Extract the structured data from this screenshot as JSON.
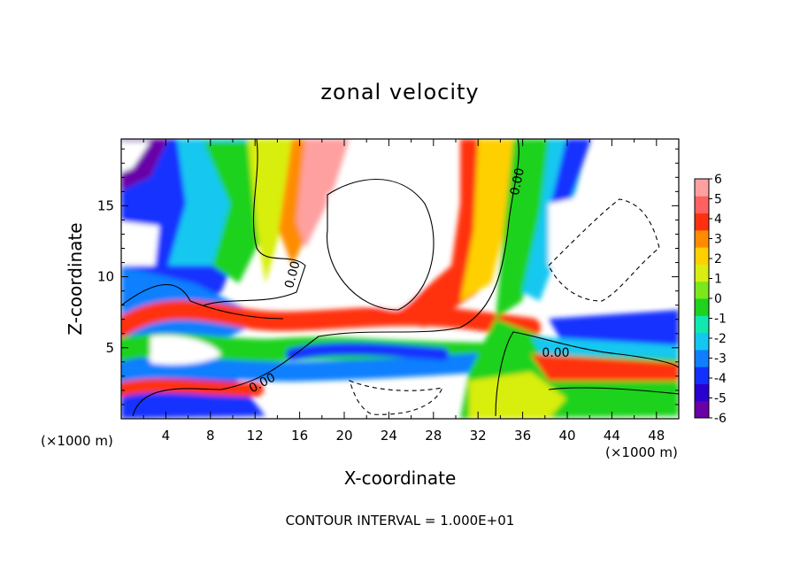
{
  "chart_data": {
    "type": "heatmap",
    "title": "zonal velocity",
    "xlabel": "X-coordinate",
    "ylabel": "Z-coordinate",
    "x_unit": "(×1000 m)",
    "xlim": [
      0,
      50
    ],
    "ylim": [
      0,
      19.7
    ],
    "x_ticks": [
      "4",
      "8",
      "12",
      "16",
      "20",
      "24",
      "28",
      "32",
      "36",
      "40",
      "44",
      "48"
    ],
    "y_ticks": [
      "5",
      "10",
      "15"
    ],
    "colorbar": {
      "range": [
        -6,
        6
      ],
      "labels": [
        "6",
        "5",
        "4",
        "3",
        "2",
        "1",
        "0",
        "-1",
        "-2",
        "-3",
        "-4",
        "-5",
        "-6"
      ]
    },
    "contour_labels": [
      "0.00",
      "0.00",
      "0.00",
      "0.00"
    ],
    "footnote": "CONTOUR INTERVAL = 1.000E+01"
  }
}
